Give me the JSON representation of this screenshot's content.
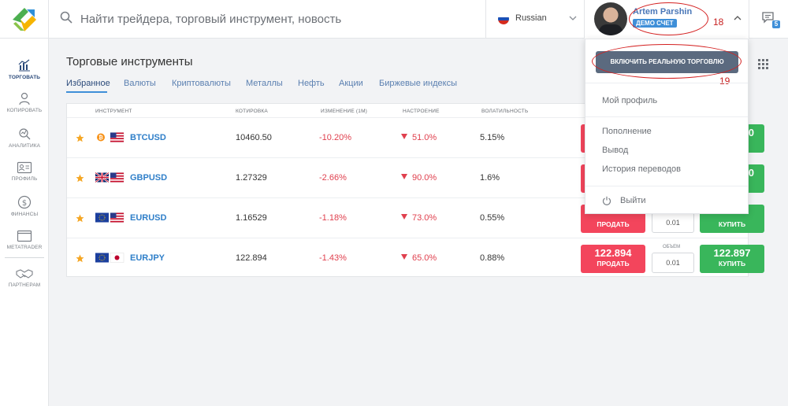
{
  "search": {
    "placeholder": "Найти трейдера, торговый инструмент, новость"
  },
  "language": {
    "selected": "Russian"
  },
  "user": {
    "name": "Artem Parshin",
    "account_badge": "ДЕМО СЧЕТ",
    "annotation": "18"
  },
  "notifications": {
    "count": "5"
  },
  "sidebar": {
    "items": [
      {
        "label": "ТОРГОВАТЬ"
      },
      {
        "label": "КОПИРОВАТЬ"
      },
      {
        "label": "АНАЛИТИКА"
      },
      {
        "label": "ПРОФИЛЬ"
      },
      {
        "label": "ФИНАНСЫ"
      },
      {
        "label": "METATRADER"
      },
      {
        "label": "ПАРТНЕРАМ"
      }
    ]
  },
  "main": {
    "title": "Торговые инструменты",
    "tabs": [
      {
        "label": "Избранное"
      },
      {
        "label": "Валюты"
      },
      {
        "label": "Криптовалюты"
      },
      {
        "label": "Металлы"
      },
      {
        "label": "Нефть"
      },
      {
        "label": "Акции"
      },
      {
        "label": "Биржевые индексы"
      }
    ]
  },
  "table": {
    "headers": {
      "instrument": "ИНСТРУМЕНТ",
      "quote": "КОТИРОВКА",
      "change": "ИЗМЕНЕНИЕ (1М)",
      "mood": "НАСТРОЕНИЕ",
      "volatility": "ВОЛАТИЛЬНОСТЬ"
    },
    "rows": [
      {
        "symbol": "BTCUSD",
        "quote": "10460.50",
        "change": "-10.20%",
        "mood": "51.0%",
        "volatility": "5.15%",
        "sell_label": "",
        "sell_price": "",
        "buy_price": "0",
        "buy_label": "",
        "vol_label": "",
        "volume": ""
      },
      {
        "symbol": "GBPUSD",
        "quote": "1.27329",
        "change": "-2.66%",
        "mood": "90.0%",
        "volatility": "1.6%",
        "sell_label": "",
        "sell_price": "",
        "buy_price": "0",
        "buy_label": "",
        "vol_label": "",
        "volume": ""
      },
      {
        "symbol": "EURUSD",
        "quote": "1.16529",
        "change": "-1.18%",
        "mood": "73.0%",
        "volatility": "0.55%",
        "sell_label": "ПРОДАТЬ",
        "sell_price": "",
        "buy_price": "",
        "buy_label": "КУПИТЬ",
        "vol_label": "",
        "volume": "0.01"
      },
      {
        "symbol": "EURJPY",
        "quote": "122.894",
        "change": "-1.43%",
        "mood": "65.0%",
        "volatility": "0.88%",
        "sell_label": "ПРОДАТЬ",
        "sell_price": "122.894",
        "buy_price": "122.897",
        "buy_label": "КУПИТЬ",
        "vol_label": "ОБЪЕМ",
        "volume": "0.01"
      }
    ]
  },
  "dropdown": {
    "real_trading_button": "ВКЛЮЧИТЬ РЕАЛЬНУЮ ТОРГОВЛЮ",
    "annotation": "19",
    "my_profile": "Мой профиль",
    "deposit": "Пополнение",
    "withdraw": "Вывод",
    "transfer_history": "История переводов",
    "logout": "Выйти"
  },
  "colors": {
    "sell": "#f3455c",
    "buy": "#39b65b",
    "accent": "#3f8fd8",
    "negative": "#e0404e",
    "annotation": "#d42020"
  },
  "icons": [
    "logo",
    "search-icon",
    "russia-flag-icon",
    "chevron-down-icon",
    "chevron-up-icon",
    "chat-icon",
    "trade-chart-icon",
    "copy-user-icon",
    "analytics-icon",
    "profile-card-icon",
    "dollar-coin-icon",
    "window-icon",
    "handshake-icon",
    "star-icon",
    "grid-icon",
    "power-icon"
  ]
}
